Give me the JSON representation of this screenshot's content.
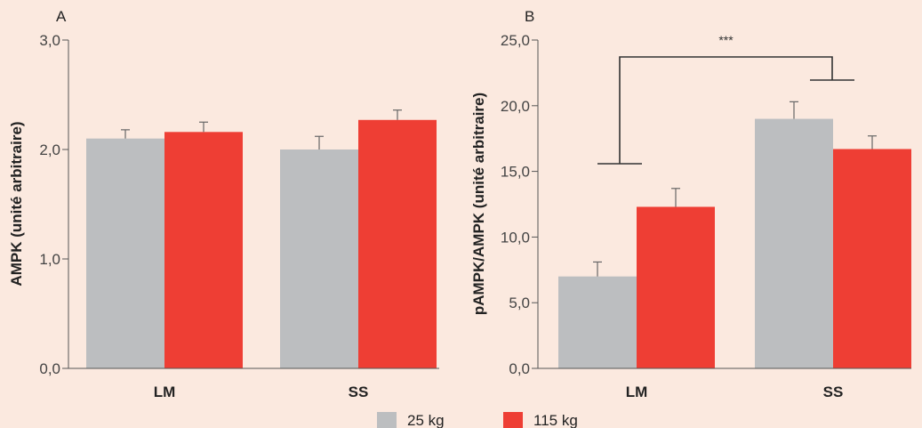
{
  "colors": {
    "background": "#fbe9df",
    "series_25": "#bcbec0",
    "series_115": "#ee3e34",
    "axis": "#555555",
    "text": "#222222"
  },
  "legend": {
    "items": [
      {
        "label": "25 kg",
        "color": "#bcbec0"
      },
      {
        "label": "115 kg",
        "color": "#ee3e34"
      }
    ]
  },
  "chart_data": [
    {
      "panel": "A",
      "type": "bar",
      "ylabel": "AMPK (unité arbitraire)",
      "xlabel": "",
      "categories": [
        "LM",
        "SS"
      ],
      "ylim": [
        0,
        3.0
      ],
      "yticks": [
        0,
        1,
        2,
        3
      ],
      "ytick_labels": [
        "0,0",
        "1,0",
        "2,0",
        "3,0"
      ],
      "series": [
        {
          "name": "25 kg",
          "color": "#bcbec0",
          "values": [
            2.1,
            2.0
          ],
          "errors": [
            0.08,
            0.12
          ]
        },
        {
          "name": "115 kg",
          "color": "#ee3e34",
          "values": [
            2.16,
            2.27
          ],
          "errors": [
            0.09,
            0.09
          ]
        }
      ],
      "annotations": []
    },
    {
      "panel": "B",
      "type": "bar",
      "ylabel": "pAMPK/AMPK (unité arbitraire)",
      "xlabel": "",
      "categories": [
        "LM",
        "SS"
      ],
      "ylim": [
        0,
        25.0
      ],
      "yticks": [
        0,
        5,
        10,
        15,
        20,
        25
      ],
      "ytick_labels": [
        "0,0",
        "5,0",
        "10,0",
        "15,0",
        "20,0",
        "25,0"
      ],
      "series": [
        {
          "name": "25 kg",
          "color": "#bcbec0",
          "values": [
            7.0,
            19.0
          ],
          "errors": [
            1.1,
            1.3
          ]
        },
        {
          "name": "115 kg",
          "color": "#ee3e34",
          "values": [
            12.3,
            16.7
          ],
          "errors": [
            1.4,
            1.0
          ]
        }
      ],
      "annotations": [
        {
          "type": "significance_bracket",
          "between": [
            "LM",
            "SS"
          ],
          "label": "***"
        }
      ]
    }
  ]
}
